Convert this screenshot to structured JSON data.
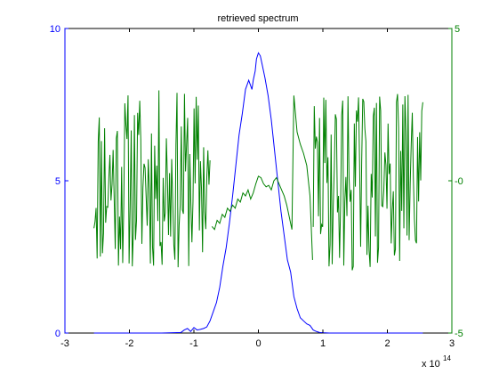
{
  "chart_data": {
    "type": "line",
    "title": "retrieved spectrum",
    "xlabel": "",
    "ylabel_left": "",
    "ylabel_right": "",
    "x_multiplier": "x 10",
    "x_multiplier_exp": "14",
    "xlim": [
      -3,
      3
    ],
    "ylim_left": [
      0,
      10
    ],
    "ylim_right": [
      -5,
      5
    ],
    "xticks": [
      "-3",
      "-2",
      "-1",
      "0",
      "1",
      "2",
      "3"
    ],
    "xtick_values": [
      -3,
      -2,
      -1,
      0,
      1,
      2,
      3
    ],
    "yticks_left": [
      "0",
      "5",
      "10"
    ],
    "ytick_values_left": [
      0,
      5,
      10
    ],
    "yticks_right": [
      "-5",
      "-0",
      "5"
    ],
    "ytick_values_right": [
      -5,
      0,
      5
    ],
    "grid": false,
    "colors": {
      "axes": "#000000",
      "left_series": "#0000ff",
      "right_series": "#008000",
      "background": "#ffffff"
    },
    "series": [
      {
        "axis": "left",
        "color": "#0000ff",
        "x": [
          -2.55,
          -2.0,
          -1.5,
          -1.2,
          -1.15,
          -1.1,
          -1.05,
          -1.0,
          -0.95,
          -0.9,
          -0.85,
          -0.8,
          -0.75,
          -0.7,
          -0.65,
          -0.6,
          -0.55,
          -0.5,
          -0.45,
          -0.4,
          -0.35,
          -0.3,
          -0.25,
          -0.2,
          -0.15,
          -0.1,
          -0.08,
          -0.05,
          -0.03,
          0.0,
          0.03,
          0.06,
          0.1,
          0.15,
          0.2,
          0.25,
          0.3,
          0.35,
          0.4,
          0.45,
          0.5,
          0.55,
          0.6,
          0.65,
          0.7,
          0.75,
          0.8,
          0.85,
          0.9,
          0.95,
          1.0,
          1.1,
          1.5,
          2.0,
          2.55
        ],
        "y": [
          0.0,
          0.0,
          0.0,
          0.02,
          0.1,
          0.15,
          0.05,
          0.18,
          0.1,
          0.12,
          0.15,
          0.2,
          0.4,
          0.7,
          1.0,
          1.5,
          2.2,
          2.8,
          3.6,
          4.5,
          5.5,
          6.5,
          7.2,
          8.0,
          8.3,
          8.0,
          8.3,
          8.6,
          9.0,
          9.2,
          9.1,
          8.8,
          8.4,
          7.8,
          7.0,
          6.0,
          5.0,
          4.0,
          3.2,
          2.4,
          2.0,
          1.2,
          0.8,
          0.5,
          0.4,
          0.3,
          0.25,
          0.1,
          0.05,
          0.02,
          0.01,
          0.0,
          0.0,
          0.0,
          0.0
        ]
      },
      {
        "axis": "right",
        "color": "#008000",
        "noisy_segments": [
          {
            "x_start": -2.55,
            "x_end": -0.75,
            "n": 110,
            "low": -3.0,
            "high": 3.0,
            "seed": 11
          },
          {
            "x_start": 0.85,
            "x_end": 2.55,
            "n": 105,
            "low": -3.0,
            "high": 3.0,
            "seed": 29
          }
        ],
        "x": [
          -0.72,
          -0.68,
          -0.64,
          -0.6,
          -0.56,
          -0.52,
          -0.48,
          -0.44,
          -0.4,
          -0.36,
          -0.32,
          -0.28,
          -0.24,
          -0.2,
          -0.16,
          -0.12,
          -0.08,
          -0.04,
          0.0,
          0.04,
          0.08,
          0.12,
          0.16,
          0.2,
          0.24,
          0.28,
          0.32,
          0.36,
          0.4,
          0.44,
          0.48,
          0.52,
          0.55,
          0.6,
          0.65,
          0.7,
          0.75,
          0.8,
          0.84
        ],
        "y": [
          -1.5,
          -1.6,
          -1.3,
          -1.4,
          -1.1,
          -1.2,
          -0.9,
          -1.0,
          -0.8,
          -0.9,
          -0.6,
          -0.7,
          -0.4,
          -0.5,
          -0.3,
          -0.6,
          -0.4,
          -0.1,
          0.15,
          0.1,
          -0.1,
          -0.2,
          -0.15,
          -0.3,
          0.0,
          0.1,
          -0.1,
          -0.3,
          -0.5,
          -0.8,
          -1.2,
          -1.6,
          2.8,
          1.6,
          1.2,
          0.9,
          0.5,
          -0.5,
          -2.6
        ]
      }
    ]
  }
}
